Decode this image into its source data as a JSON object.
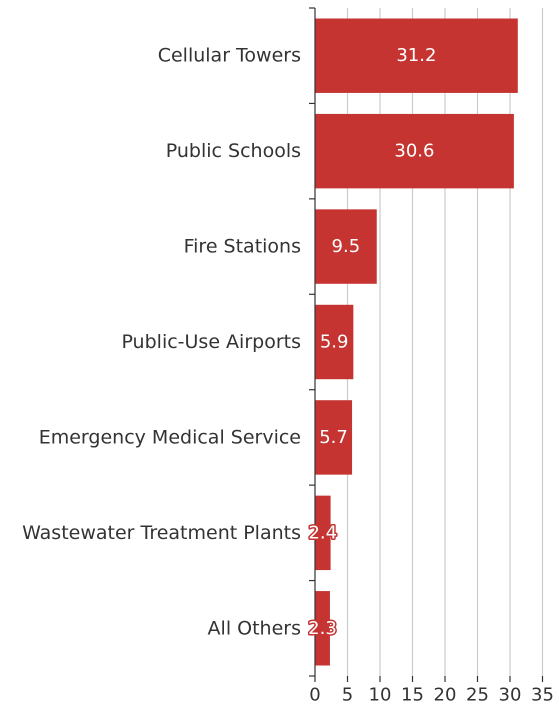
{
  "colors": {
    "bar": "#c63432",
    "grid": "#cccccc",
    "axis": "#333333",
    "label_text": "#333333",
    "value_text": "#ffffff"
  },
  "chart_data": {
    "type": "bar",
    "orientation": "horizontal",
    "title": "",
    "xlabel": "",
    "ylabel": "",
    "categories": [
      "Cellular Towers",
      "Public Schools",
      "Fire Stations",
      "Public-Use Airports",
      "Emergency Medical Service",
      "Wastewater Treatment Plants",
      "All Others"
    ],
    "values": [
      31.2,
      30.6,
      9.5,
      5.9,
      5.7,
      2.4,
      2.3
    ],
    "value_labels": [
      "31.2",
      "30.6",
      "9.5",
      "5.9",
      "5.7",
      "2.4",
      "2.3"
    ],
    "xlim": [
      0,
      35
    ],
    "xticks": [
      0,
      5,
      10,
      15,
      20,
      25,
      30,
      35
    ],
    "grid": "vertical",
    "legend": "none"
  }
}
